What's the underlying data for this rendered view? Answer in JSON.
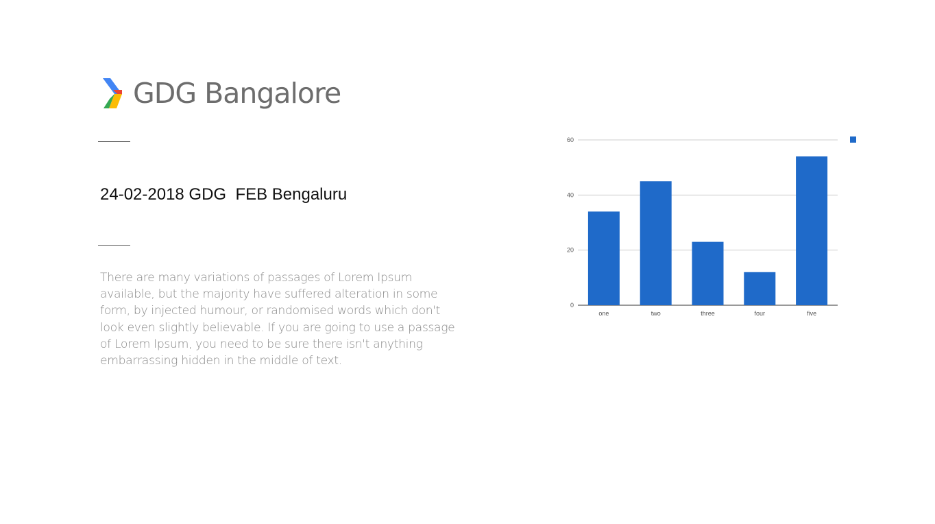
{
  "header": {
    "logo_text": "GDG Bangalore",
    "logo_colors": [
      "#4285f4",
      "#ea4335",
      "#fbbc05",
      "#34a853"
    ]
  },
  "event": {
    "title": "24-02-2018 GDG  FEB Bengaluru"
  },
  "description": {
    "text": "There are many variations of passages of Lorem Ipsum available, but the majority have suffered alteration in some form, by injected humour, or randomised words which don't look even slightly believable. If you are going to use a passage of Lorem Ipsum, you need to be sure there isn't anything embarrassing hidden in the middle of text."
  },
  "chart_data": {
    "type": "bar",
    "categories": [
      "one",
      "two",
      "three",
      "four",
      "five"
    ],
    "series": [
      {
        "values": [
          34,
          45,
          23,
          12,
          54
        ],
        "color": "#1f6ac9"
      }
    ],
    "ylim": [
      0,
      60
    ],
    "yticks": [
      0,
      20,
      40,
      60
    ],
    "grid": true,
    "legend": "top-right",
    "title": "",
    "xlabel": "",
    "ylabel": ""
  }
}
